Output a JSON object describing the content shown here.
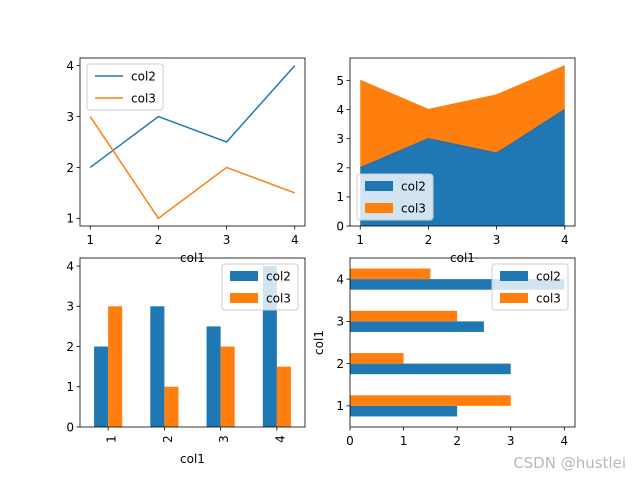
{
  "figure": {
    "watermark": "CSDN @hustlei"
  },
  "colors": {
    "col2": "#1f77b4",
    "col3": "#ff7f0e",
    "legend_border": "#cccccc"
  },
  "chart_data": [
    {
      "type": "line",
      "x": [
        1,
        2,
        3,
        4
      ],
      "series": [
        {
          "name": "col2",
          "values": [
            2,
            3,
            2.5,
            4
          ]
        },
        {
          "name": "col3",
          "values": [
            3,
            1,
            2,
            1.5
          ]
        }
      ],
      "xlabel": "col1",
      "ylabel": "",
      "xlim": [
        0.85,
        4.15
      ],
      "ylim": [
        0.85,
        4.15
      ],
      "xticks": [
        "1",
        "2",
        "3",
        "4"
      ],
      "yticks": [
        "1",
        "2",
        "3",
        "4"
      ],
      "legend": "upper-left",
      "grid": false
    },
    {
      "type": "area",
      "stacked": true,
      "x": [
        1,
        2,
        3,
        4
      ],
      "series": [
        {
          "name": "col2",
          "values": [
            2,
            3,
            2.5,
            4
          ]
        },
        {
          "name": "col3",
          "values": [
            3,
            1,
            2,
            1.5
          ]
        }
      ],
      "xlabel": "col1",
      "ylabel": "",
      "xlim": [
        0.85,
        4.15
      ],
      "ylim": [
        0,
        5.775
      ],
      "xticks": [
        "1",
        "2",
        "3",
        "4"
      ],
      "yticks": [
        "0",
        "1",
        "2",
        "3",
        "4",
        "5"
      ],
      "legend": "lower-left",
      "grid": false
    },
    {
      "type": "bar",
      "categories": [
        "1",
        "2",
        "3",
        "4"
      ],
      "series": [
        {
          "name": "col2",
          "values": [
            2,
            3,
            2.5,
            4
          ]
        },
        {
          "name": "col3",
          "values": [
            3,
            1,
            2,
            1.5
          ]
        }
      ],
      "xlabel": "col1",
      "ylabel": "",
      "ylim": [
        0,
        4.2
      ],
      "yticks": [
        "0",
        "1",
        "2",
        "3",
        "4"
      ],
      "legend": "upper-right",
      "grid": false
    },
    {
      "type": "barh",
      "categories": [
        "1",
        "2",
        "3",
        "4"
      ],
      "series": [
        {
          "name": "col2",
          "values": [
            2,
            3,
            2.5,
            4
          ]
        },
        {
          "name": "col3",
          "values": [
            3,
            1,
            2,
            1.5
          ]
        }
      ],
      "xlabel": "",
      "ylabel": "col1",
      "xlim": [
        0,
        4.2
      ],
      "xticks": [
        "0",
        "1",
        "2",
        "3",
        "4"
      ],
      "legend": "upper-right",
      "grid": false
    }
  ]
}
